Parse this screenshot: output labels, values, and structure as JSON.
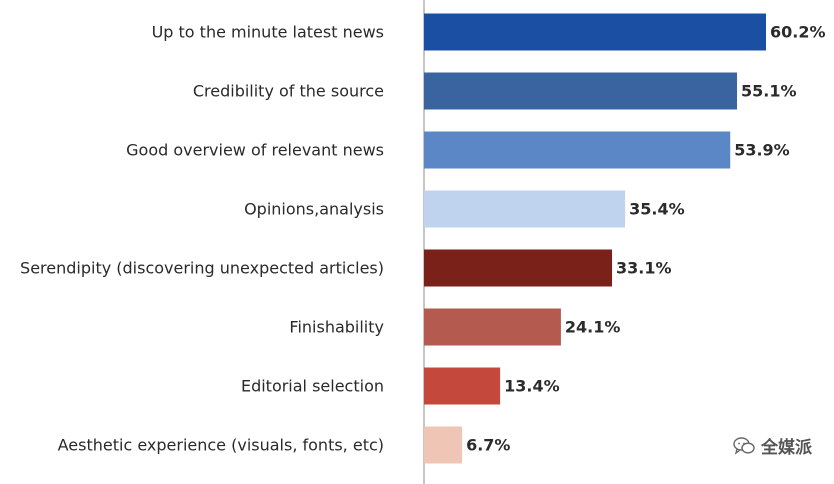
{
  "chart_data": {
    "type": "bar",
    "orientation": "horizontal",
    "categories": [
      "Up to the minute latest news",
      "Credibility of the source",
      "Good overview of relevant news",
      "Opinions,analysis",
      "Serendipity (discovering unexpected articles)",
      "Finishability",
      "Editorial selection",
      "Aesthetic experience (visuals, fonts, etc)"
    ],
    "values": [
      60.2,
      55.1,
      53.9,
      35.4,
      33.1,
      24.1,
      13.4,
      6.7
    ],
    "value_labels": [
      "60.2%",
      "55.1%",
      "53.9%",
      "35.4%",
      "33.1%",
      "24.1%",
      "13.4%",
      "6.7%"
    ],
    "colors": [
      "#1a4fa3",
      "#3a64a0",
      "#5b87c6",
      "#bfd2ee",
      "#7a2119",
      "#b45a4e",
      "#c4483b",
      "#efc5b5"
    ],
    "xlim": [
      0,
      60.2
    ],
    "grid": false,
    "title": "",
    "xlabel": "",
    "ylabel": ""
  },
  "watermark": {
    "text": "全媒派",
    "icon": "wechat-icon"
  }
}
